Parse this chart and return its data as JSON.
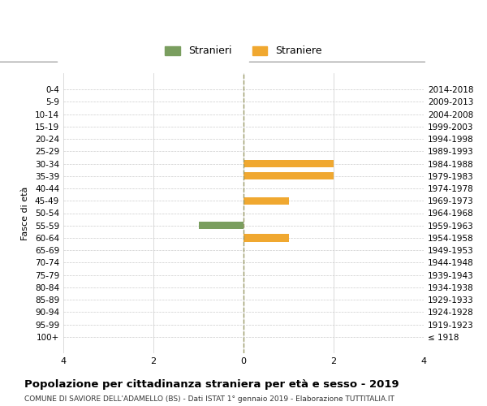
{
  "age_groups": [
    "100+",
    "95-99",
    "90-94",
    "85-89",
    "80-84",
    "75-79",
    "70-74",
    "65-69",
    "60-64",
    "55-59",
    "50-54",
    "45-49",
    "40-44",
    "35-39",
    "30-34",
    "25-29",
    "20-24",
    "15-19",
    "10-14",
    "5-9",
    "0-4"
  ],
  "birth_years": [
    "≤ 1918",
    "1919-1923",
    "1924-1928",
    "1929-1933",
    "1934-1938",
    "1939-1943",
    "1944-1948",
    "1949-1953",
    "1954-1958",
    "1959-1963",
    "1964-1968",
    "1969-1973",
    "1974-1978",
    "1979-1983",
    "1984-1988",
    "1989-1993",
    "1994-1998",
    "1999-2003",
    "2004-2008",
    "2009-2013",
    "2014-2018"
  ],
  "males": [
    0,
    0,
    0,
    0,
    0,
    0,
    0,
    0,
    0,
    1,
    0,
    0,
    0,
    0,
    0,
    0,
    0,
    0,
    0,
    0,
    0
  ],
  "females": [
    0,
    0,
    0,
    0,
    0,
    0,
    0,
    0,
    1,
    0,
    0,
    1,
    0,
    2,
    2,
    0,
    0,
    0,
    0,
    0,
    0
  ],
  "male_color": "#7a9e5f",
  "female_color": "#f0a830",
  "title": "Popolazione per cittadinanza straniera per età e sesso - 2019",
  "subtitle": "COMUNE DI SAVIORE DELL'ADAMELLO (BS) - Dati ISTAT 1° gennaio 2019 - Elaborazione TUTTITALIA.IT",
  "ylabel_left": "Fasce di età",
  "legend_stranieri": "Stranieri",
  "legend_straniere": "Straniere",
  "xlim": 4,
  "background_color": "#ffffff",
  "grid_color": "#cccccc"
}
